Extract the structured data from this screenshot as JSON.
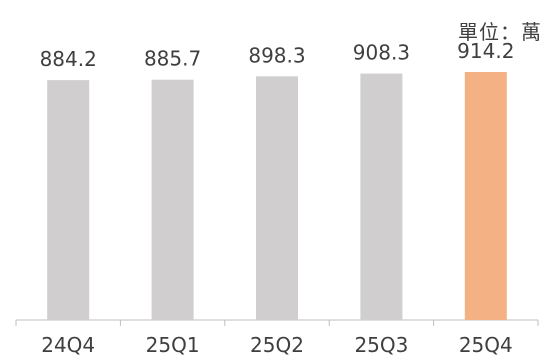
{
  "unit_label": "單位：萬",
  "chart_data": {
    "type": "bar",
    "categories": [
      "24Q4",
      "25Q1",
      "25Q2",
      "25Q3",
      "25Q4"
    ],
    "values": [
      884.2,
      885.7,
      898.3,
      908.3,
      914.2
    ],
    "value_labels": [
      "884.2",
      "885.7",
      "898.3",
      "908.3",
      "914.2"
    ],
    "ylim": [
      0,
      914.2
    ],
    "grid": false,
    "legend": "none",
    "colors": {
      "default_bar": "#d0cece",
      "highlight_bar": "#f4b183",
      "text": "#3f3f3f",
      "axis": "#bfbfbf"
    },
    "highlight_index": 4
  }
}
